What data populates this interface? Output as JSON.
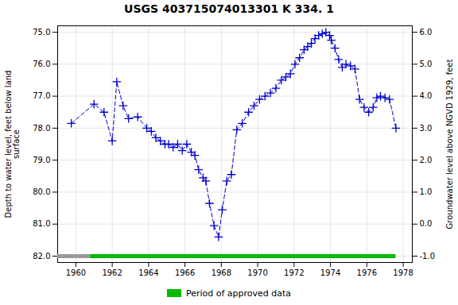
{
  "chart_data": {
    "type": "line",
    "title": "USGS 403715074013301 K   334. 1",
    "ylabel": "Depth to water level, feet below land\nsurface",
    "y2label": "Groundwater level above NGVD 1929, feet",
    "x": [
      1959.75,
      1961.0,
      1961.55,
      1962.0,
      1962.25,
      1962.6,
      1962.9,
      1963.4,
      1963.9,
      1964.15,
      1964.4,
      1964.65,
      1964.9,
      1965.1,
      1965.35,
      1965.6,
      1965.85,
      1966.1,
      1966.35,
      1966.55,
      1966.75,
      1967.0,
      1967.15,
      1967.35,
      1967.6,
      1967.85,
      1968.05,
      1968.3,
      1968.55,
      1968.85,
      1969.15,
      1969.5,
      1969.8,
      1970.1,
      1970.4,
      1970.7,
      1971.0,
      1971.3,
      1971.55,
      1971.8,
      1972.05,
      1972.3,
      1972.55,
      1972.75,
      1972.95,
      1973.15,
      1973.35,
      1973.55,
      1973.75,
      1973.95,
      1974.05,
      1974.25,
      1974.45,
      1974.65,
      1974.85,
      1975.1,
      1975.35,
      1975.6,
      1975.85,
      1976.1,
      1976.35,
      1976.55,
      1976.75,
      1977.0,
      1977.25,
      1977.6
    ],
    "series": [
      {
        "color": "#0000cc",
        "marker": "plus",
        "line_style": "dashed",
        "values": [
          77.85,
          77.25,
          77.5,
          78.4,
          76.55,
          77.3,
          77.7,
          77.65,
          78.0,
          78.1,
          78.3,
          78.4,
          78.5,
          78.5,
          78.6,
          78.5,
          78.7,
          78.5,
          78.75,
          78.85,
          79.3,
          79.55,
          79.65,
          80.35,
          81.05,
          81.4,
          80.55,
          79.65,
          79.45,
          78.05,
          77.85,
          77.5,
          77.3,
          77.1,
          77.0,
          76.9,
          76.75,
          76.5,
          76.4,
          76.3,
          76.0,
          75.8,
          75.55,
          75.45,
          75.35,
          75.2,
          75.1,
          75.05,
          75.0,
          75.1,
          75.25,
          75.5,
          75.85,
          76.1,
          76.0,
          76.05,
          76.15,
          77.1,
          77.35,
          77.5,
          77.35,
          77.05,
          77.0,
          77.05,
          77.1,
          78.0
        ]
      }
    ],
    "xlim": [
      1959.0,
      1978.5
    ],
    "xticks": [
      1960,
      1962,
      1964,
      1966,
      1968,
      1970,
      1972,
      1974,
      1976,
      1978
    ],
    "ylim": [
      82.2,
      74.8
    ],
    "yticks": [
      {
        "value": 75.0,
        "label": "75.0"
      },
      {
        "value": 76.0,
        "label": "76.0"
      },
      {
        "value": 77.0,
        "label": "77.0"
      },
      {
        "value": 78.0,
        "label": "78.0"
      },
      {
        "value": 79.0,
        "label": "79.0"
      },
      {
        "value": 80.0,
        "label": "80.0"
      },
      {
        "value": 81.0,
        "label": "81.0"
      },
      {
        "value": 82.0,
        "label": "82.0"
      }
    ],
    "y2lim": [
      -1.2,
      6.2
    ],
    "y2ticks": [
      {
        "value": -1.0,
        "label": "-1.0"
      },
      {
        "value": 0.0,
        "label": "0.0"
      },
      {
        "value": 1.0,
        "label": "1.0"
      },
      {
        "value": 2.0,
        "label": "2.0"
      },
      {
        "value": 3.0,
        "label": "3.0"
      },
      {
        "value": 4.0,
        "label": "4.0"
      },
      {
        "value": 5.0,
        "label": "5.0"
      },
      {
        "value": 6.0,
        "label": "6.0"
      }
    ],
    "grid": true,
    "period_y": 82.0,
    "periods": [
      {
        "start": 1959.0,
        "end": 1960.8,
        "color": "#999999"
      },
      {
        "name": "Period of approved data",
        "start": 1960.8,
        "end": 1977.6,
        "color": "#00bb00"
      }
    ],
    "legend": "bottom"
  }
}
